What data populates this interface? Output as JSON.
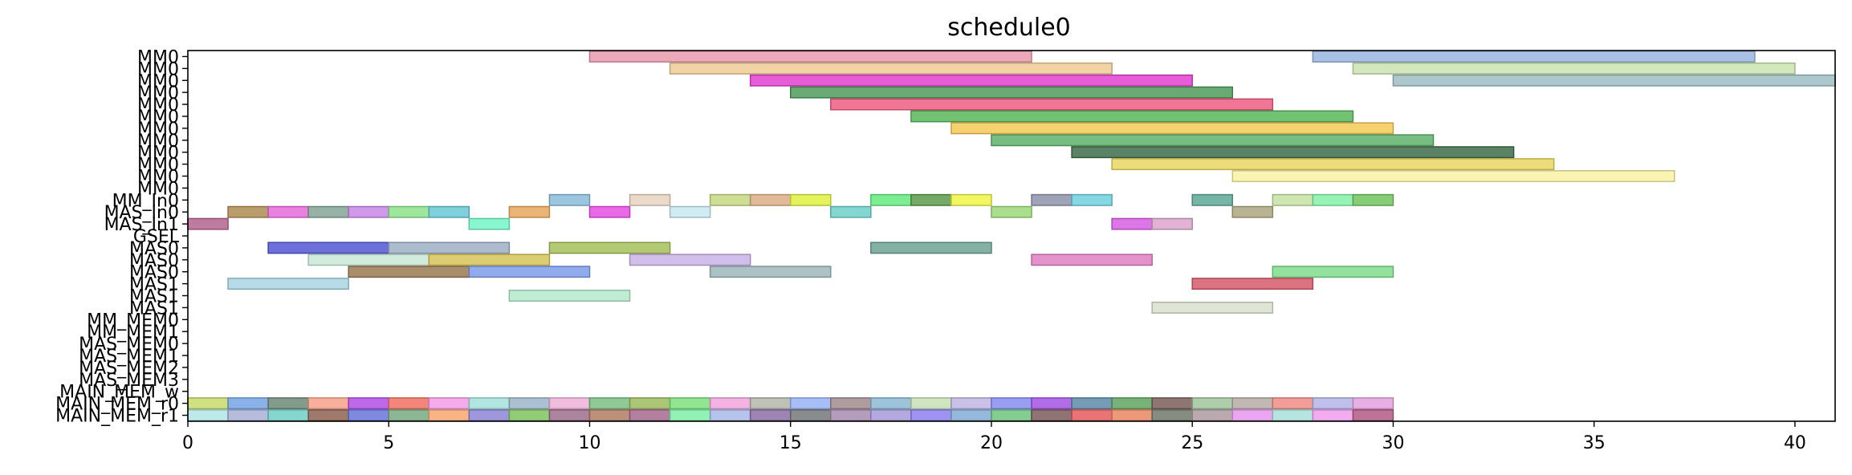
{
  "chart_data": {
    "type": "gantt",
    "title": "schedule0",
    "xlabel": "",
    "ylabel": "",
    "xlim": [
      0,
      41
    ],
    "xticks": [
      0,
      5,
      10,
      15,
      20,
      25,
      30,
      35,
      40
    ],
    "grid": false,
    "rows": [
      "MM0",
      "MM0",
      "MM0",
      "MM0",
      "MM0",
      "MM0",
      "MM0",
      "MM0",
      "MM0",
      "MM0",
      "MM0",
      "MM0",
      "MM_In0",
      "MAS_In0",
      "MAS_In1",
      "GSEL",
      "MAS0",
      "MAS0",
      "MAS0",
      "MAS1",
      "MAS1",
      "MAS1",
      "MM_MEM0",
      "MM_MEM1",
      "MAS_MEM0",
      "MAS_MEM1",
      "MAS_MEM2",
      "MAS_MEM3",
      "MAIN_MEM_w",
      "MAIN_MEM_r0",
      "MAIN_MEM_r1"
    ],
    "bars": [
      {
        "row": 0,
        "start": 10,
        "end": 21,
        "color": "#e79aae"
      },
      {
        "row": 0,
        "start": 28,
        "end": 39,
        "color": "#9ab6e0"
      },
      {
        "row": 1,
        "start": 12,
        "end": 23,
        "color": "#eecb96"
      },
      {
        "row": 1,
        "start": 29,
        "end": 40,
        "color": "#cbe3b1"
      },
      {
        "row": 2,
        "start": 14,
        "end": 25,
        "color": "#e33fd0"
      },
      {
        "row": 2,
        "start": 30,
        "end": 41,
        "color": "#9fbec4"
      },
      {
        "row": 3,
        "start": 15,
        "end": 26,
        "color": "#4f9a5b"
      },
      {
        "row": 4,
        "start": 16,
        "end": 27,
        "color": "#ee5d83"
      },
      {
        "row": 5,
        "start": 18,
        "end": 29,
        "color": "#5bb75c"
      },
      {
        "row": 6,
        "start": 19,
        "end": 30,
        "color": "#f5c957"
      },
      {
        "row": 7,
        "start": 20,
        "end": 31,
        "color": "#5fb06a"
      },
      {
        "row": 8,
        "start": 22,
        "end": 33,
        "color": "#3e6c4a"
      },
      {
        "row": 9,
        "start": 23,
        "end": 34,
        "color": "#ead763"
      },
      {
        "row": 10,
        "start": 26,
        "end": 37,
        "color": "#f9f2a6"
      },
      {
        "row": 12,
        "start": 9,
        "end": 10,
        "color": "#8bbcd9"
      },
      {
        "row": 12,
        "start": 11,
        "end": 12,
        "color": "#e8d3c2"
      },
      {
        "row": 12,
        "start": 13,
        "end": 14,
        "color": "#c5d882"
      },
      {
        "row": 12,
        "start": 14,
        "end": 15,
        "color": "#dcae87"
      },
      {
        "row": 12,
        "start": 15,
        "end": 16,
        "color": "#dff03e"
      },
      {
        "row": 12,
        "start": 17,
        "end": 18,
        "color": "#66ea7f"
      },
      {
        "row": 12,
        "start": 18,
        "end": 19,
        "color": "#5c9a4c"
      },
      {
        "row": 12,
        "start": 19,
        "end": 20,
        "color": "#eef445"
      },
      {
        "row": 12,
        "start": 21,
        "end": 22,
        "color": "#8d93ab"
      },
      {
        "row": 12,
        "start": 22,
        "end": 23,
        "color": "#6fd0de"
      },
      {
        "row": 12,
        "start": 25,
        "end": 26,
        "color": "#5ea796"
      },
      {
        "row": 12,
        "start": 27,
        "end": 28,
        "color": "#c6e2a4"
      },
      {
        "row": 12,
        "start": 28,
        "end": 29,
        "color": "#85f0a8"
      },
      {
        "row": 12,
        "start": 29,
        "end": 30,
        "color": "#72c460"
      },
      {
        "row": 13,
        "start": 1,
        "end": 2,
        "color": "#ad8c52"
      },
      {
        "row": 13,
        "start": 2,
        "end": 3,
        "color": "#e86bd8"
      },
      {
        "row": 13,
        "start": 3,
        "end": 4,
        "color": "#85a396"
      },
      {
        "row": 13,
        "start": 4,
        "end": 5,
        "color": "#c887e6"
      },
      {
        "row": 13,
        "start": 5,
        "end": 6,
        "color": "#8ee28c"
      },
      {
        "row": 13,
        "start": 6,
        "end": 7,
        "color": "#68c8d6"
      },
      {
        "row": 13,
        "start": 8,
        "end": 9,
        "color": "#e6a85c"
      },
      {
        "row": 13,
        "start": 10,
        "end": 11,
        "color": "#e54fe3"
      },
      {
        "row": 13,
        "start": 12,
        "end": 13,
        "color": "#c8e7ef"
      },
      {
        "row": 13,
        "start": 16,
        "end": 17,
        "color": "#6ecfc9"
      },
      {
        "row": 13,
        "start": 20,
        "end": 21,
        "color": "#9cd97a"
      },
      {
        "row": 13,
        "start": 26,
        "end": 27,
        "color": "#aba67e"
      },
      {
        "row": 14,
        "start": 0,
        "end": 1,
        "color": "#b3648e"
      },
      {
        "row": 14,
        "start": 7,
        "end": 8,
        "color": "#73f5c6"
      },
      {
        "row": 14,
        "start": 23,
        "end": 24,
        "color": "#d65de0"
      },
      {
        "row": 14,
        "start": 24,
        "end": 25,
        "color": "#dba6cd"
      },
      {
        "row": 16,
        "start": 2,
        "end": 5,
        "color": "#5357d5"
      },
      {
        "row": 16,
        "start": 5,
        "end": 8,
        "color": "#9db0c5"
      },
      {
        "row": 16,
        "start": 9,
        "end": 12,
        "color": "#a7c05a"
      },
      {
        "row": 16,
        "start": 17,
        "end": 20,
        "color": "#6da495"
      },
      {
        "row": 17,
        "start": 3,
        "end": 6,
        "color": "#c8e8d6"
      },
      {
        "row": 17,
        "start": 6,
        "end": 9,
        "color": "#d7c459"
      },
      {
        "row": 17,
        "start": 11,
        "end": 14,
        "color": "#c9b3e6"
      },
      {
        "row": 17,
        "start": 21,
        "end": 24,
        "color": "#df7fc3"
      },
      {
        "row": 18,
        "start": 4,
        "end": 7,
        "color": "#9a7a52"
      },
      {
        "row": 18,
        "start": 7,
        "end": 10,
        "color": "#7e9ee9"
      },
      {
        "row": 18,
        "start": 13,
        "end": 16,
        "color": "#9db7bb"
      },
      {
        "row": 18,
        "start": 27,
        "end": 30,
        "color": "#7fdc8c"
      },
      {
        "row": 19,
        "start": 1,
        "end": 4,
        "color": "#a9d3e3"
      },
      {
        "row": 19,
        "start": 25,
        "end": 28,
        "color": "#d65a6b"
      },
      {
        "row": 20,
        "start": 8,
        "end": 11,
        "color": "#b4eacc"
      },
      {
        "row": 21,
        "start": 24,
        "end": 27,
        "color": "#d9e0cd"
      },
      {
        "row": 29,
        "start": 0,
        "end": 1,
        "color": "#c5da6a"
      },
      {
        "row": 29,
        "start": 1,
        "end": 2,
        "color": "#75a5e4"
      },
      {
        "row": 29,
        "start": 2,
        "end": 3,
        "color": "#6e8a78"
      },
      {
        "row": 29,
        "start": 3,
        "end": 4,
        "color": "#f7a28c"
      },
      {
        "row": 29,
        "start": 4,
        "end": 5,
        "color": "#b24fe6"
      },
      {
        "row": 29,
        "start": 5,
        "end": 6,
        "color": "#f27063"
      },
      {
        "row": 29,
        "start": 6,
        "end": 7,
        "color": "#f39be9"
      },
      {
        "row": 29,
        "start": 7,
        "end": 8,
        "color": "#a2e2d9"
      },
      {
        "row": 29,
        "start": 8,
        "end": 9,
        "color": "#9cb5cb"
      },
      {
        "row": 29,
        "start": 9,
        "end": 10,
        "color": "#eeb2d8"
      },
      {
        "row": 29,
        "start": 10,
        "end": 11,
        "color": "#7bbf84"
      },
      {
        "row": 29,
        "start": 11,
        "end": 12,
        "color": "#9dbc60"
      },
      {
        "row": 29,
        "start": 12,
        "end": 13,
        "color": "#7ee07e"
      },
      {
        "row": 29,
        "start": 13,
        "end": 14,
        "color": "#f1a5dc"
      },
      {
        "row": 29,
        "start": 14,
        "end": 15,
        "color": "#b3b6a9"
      },
      {
        "row": 29,
        "start": 15,
        "end": 16,
        "color": "#98b3f6"
      },
      {
        "row": 29,
        "start": 16,
        "end": 17,
        "color": "#a18b8d"
      },
      {
        "row": 29,
        "start": 17,
        "end": 18,
        "color": "#8bb8d3"
      },
      {
        "row": 29,
        "start": 18,
        "end": 19,
        "color": "#c7e0b5"
      },
      {
        "row": 29,
        "start": 19,
        "end": 20,
        "color": "#c1b5e4"
      },
      {
        "row": 29,
        "start": 20,
        "end": 21,
        "color": "#868df0"
      },
      {
        "row": 29,
        "start": 21,
        "end": 22,
        "color": "#a354e3"
      },
      {
        "row": 29,
        "start": 22,
        "end": 23,
        "color": "#5d8aa9"
      },
      {
        "row": 29,
        "start": 23,
        "end": 24,
        "color": "#5fa462"
      },
      {
        "row": 29,
        "start": 24,
        "end": 25,
        "color": "#7b5e5a"
      },
      {
        "row": 29,
        "start": 25,
        "end": 26,
        "color": "#9fc49c"
      },
      {
        "row": 29,
        "start": 26,
        "end": 27,
        "color": "#b7aca6"
      },
      {
        "row": 29,
        "start": 27,
        "end": 28,
        "color": "#f08c86"
      },
      {
        "row": 29,
        "start": 28,
        "end": 29,
        "color": "#b3b4e6"
      },
      {
        "row": 29,
        "start": 29,
        "end": 30,
        "color": "#e3a2e0"
      },
      {
        "row": 30,
        "start": 0,
        "end": 1,
        "color": "#b1e5e4"
      },
      {
        "row": 30,
        "start": 1,
        "end": 2,
        "color": "#a8b0d6"
      },
      {
        "row": 30,
        "start": 2,
        "end": 3,
        "color": "#70cfc6"
      },
      {
        "row": 30,
        "start": 3,
        "end": 4,
        "color": "#8e6152"
      },
      {
        "row": 30,
        "start": 4,
        "end": 5,
        "color": "#6876d8"
      },
      {
        "row": 30,
        "start": 5,
        "end": 6,
        "color": "#79a982"
      },
      {
        "row": 30,
        "start": 6,
        "end": 7,
        "color": "#f7a770"
      },
      {
        "row": 30,
        "start": 7,
        "end": 8,
        "color": "#8e85d6"
      },
      {
        "row": 30,
        "start": 8,
        "end": 9,
        "color": "#80c35f"
      },
      {
        "row": 30,
        "start": 9,
        "end": 10,
        "color": "#9e6e8c"
      },
      {
        "row": 30,
        "start": 10,
        "end": 11,
        "color": "#b27c62"
      },
      {
        "row": 30,
        "start": 11,
        "end": 12,
        "color": "#a66a8e"
      },
      {
        "row": 30,
        "start": 12,
        "end": 13,
        "color": "#7ff0a6"
      },
      {
        "row": 30,
        "start": 13,
        "end": 14,
        "color": "#a9b8e7"
      },
      {
        "row": 30,
        "start": 14,
        "end": 15,
        "color": "#8c6ea6"
      },
      {
        "row": 30,
        "start": 15,
        "end": 16,
        "color": "#747878"
      },
      {
        "row": 30,
        "start": 16,
        "end": 17,
        "color": "#a68bb0"
      },
      {
        "row": 30,
        "start": 17,
        "end": 18,
        "color": "#a79ad8"
      },
      {
        "row": 30,
        "start": 18,
        "end": 19,
        "color": "#8d80ed"
      },
      {
        "row": 30,
        "start": 19,
        "end": 20,
        "color": "#84acd7"
      },
      {
        "row": 30,
        "start": 20,
        "end": 21,
        "color": "#6fc47e"
      },
      {
        "row": 30,
        "start": 21,
        "end": 22,
        "color": "#7c5a5c"
      },
      {
        "row": 30,
        "start": 22,
        "end": 23,
        "color": "#e45c5e"
      },
      {
        "row": 30,
        "start": 23,
        "end": 24,
        "color": "#e98762"
      },
      {
        "row": 30,
        "start": 24,
        "end": 25,
        "color": "#71786c"
      },
      {
        "row": 30,
        "start": 25,
        "end": 26,
        "color": "#af9aa2"
      },
      {
        "row": 30,
        "start": 26,
        "end": 27,
        "color": "#e896ee"
      },
      {
        "row": 30,
        "start": 27,
        "end": 28,
        "color": "#a8dfdc"
      },
      {
        "row": 30,
        "start": 28,
        "end": 29,
        "color": "#ee9eed"
      },
      {
        "row": 30,
        "start": 29,
        "end": 30,
        "color": "#b05a84"
      }
    ]
  }
}
